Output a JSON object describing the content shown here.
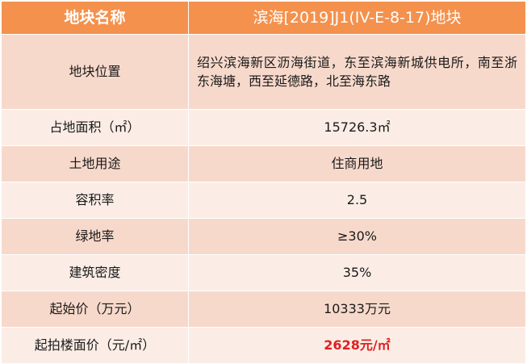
{
  "header": {
    "label": "地块名称",
    "value": "滨海[2019]J1(IV-E-8-17)地块"
  },
  "rows": [
    {
      "label": "地块位置",
      "value": "绍兴滨海新区沥海街道，东至滨海新城供电所，南至浙东海塘，西至延德路，北至海东路"
    },
    {
      "label": "占地面积（㎡）",
      "value": "15726.3㎡"
    },
    {
      "label": "土地用途",
      "value": "住商用地"
    },
    {
      "label": "容积率",
      "value": "2.5"
    },
    {
      "label": "绿地率",
      "value": "≥30%"
    },
    {
      "label": "建筑密度",
      "value": "35%"
    },
    {
      "label": "起始价（万元）",
      "value": "10333万元"
    },
    {
      "label": "起拍楼面价（元/㎡）",
      "value": "2628元/㎡"
    }
  ],
  "colors": {
    "header_bg": "#f4914d",
    "row_dark": "#f7d9cb",
    "row_light": "#fbede6",
    "highlight": "#e02020"
  }
}
